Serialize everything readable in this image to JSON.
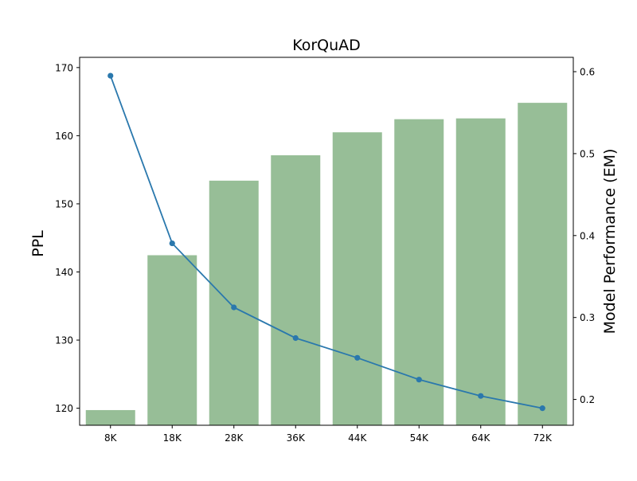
{
  "chart_data": {
    "type": "bar",
    "title": "KorQuAD",
    "categories": [
      "8K",
      "18K",
      "28K",
      "36K",
      "44K",
      "54K",
      "64K",
      "72K"
    ],
    "series": [
      {
        "kind": "bar",
        "axis": "right",
        "values": [
          0.187,
          0.376,
          0.467,
          0.498,
          0.526,
          0.542,
          0.543,
          0.562
        ],
        "color": "#97be97"
      },
      {
        "kind": "line",
        "axis": "left",
        "values": [
          168.8,
          144.2,
          134.8,
          130.3,
          127.4,
          124.2,
          121.8,
          120.0
        ],
        "color": "#2a78ad",
        "marker": "circle"
      }
    ],
    "y_left": {
      "label": "PPL",
      "lim": [
        117.5,
        171.5
      ],
      "ticks": [
        120,
        130,
        140,
        150,
        160,
        170
      ],
      "tick_labels": [
        "120",
        "130",
        "140",
        "150",
        "160",
        "170"
      ]
    },
    "y_right": {
      "label": "Model Performance (EM)",
      "lim": [
        0.1685,
        0.6175
      ],
      "ticks": [
        0.2,
        0.3,
        0.4,
        0.5,
        0.6
      ],
      "tick_labels": [
        "0.2",
        "0.3",
        "0.4",
        "0.5",
        "0.6"
      ]
    },
    "xlabel": "",
    "grid": false,
    "legend": "none"
  }
}
